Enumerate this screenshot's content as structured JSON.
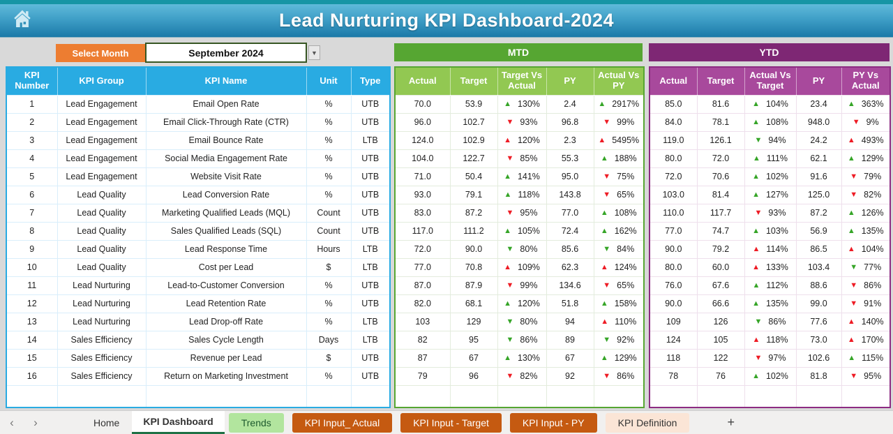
{
  "header": {
    "title": "Lead Nurturing KPI Dashboard-2024"
  },
  "controls": {
    "select_month_label": "Select Month",
    "selected_month": "September 2024"
  },
  "kpi_table": {
    "headers": [
      "KPI Number",
      "KPI Group",
      "KPI Name",
      "Unit",
      "Type"
    ]
  },
  "mtd": {
    "title": "MTD",
    "headers": [
      "Actual",
      "Target",
      "Target Vs Actual",
      "PY",
      "Actual Vs PY"
    ]
  },
  "ytd": {
    "title": "YTD",
    "headers": [
      "Actual",
      "Target",
      "Actual Vs Target",
      "PY",
      "PY Vs Actual"
    ]
  },
  "colors": {
    "accent_table": "#29ABE2",
    "accent_mtd": "#56A632",
    "accent_ytd": "#7E2774",
    "accent_month": "#ED7D31",
    "arrow_green": "#36A528",
    "arrow_red": "#EE1C25"
  },
  "rows": [
    {
      "num": "1",
      "group": "Lead Engagement",
      "name": "Email Open Rate",
      "unit": "%",
      "type": "UTB",
      "mtd": {
        "actual": "70.0",
        "target": "53.9",
        "tva": {
          "arrow": "up",
          "color": "green",
          "value": "130%"
        },
        "py": "2.4",
        "avp": {
          "arrow": "up",
          "color": "green",
          "value": "2917%"
        }
      },
      "ytd": {
        "actual": "85.0",
        "target": "81.6",
        "avt": {
          "arrow": "up",
          "color": "green",
          "value": "104%"
        },
        "py": "23.4",
        "pva": {
          "arrow": "up",
          "color": "green",
          "value": "363%"
        }
      }
    },
    {
      "num": "2",
      "group": "Lead Engagement",
      "name": "Email Click-Through Rate (CTR)",
      "unit": "%",
      "type": "UTB",
      "mtd": {
        "actual": "96.0",
        "target": "102.7",
        "tva": {
          "arrow": "down",
          "color": "red",
          "value": "93%"
        },
        "py": "96.8",
        "avp": {
          "arrow": "down",
          "color": "red",
          "value": "99%"
        }
      },
      "ytd": {
        "actual": "84.0",
        "target": "78.1",
        "avt": {
          "arrow": "up",
          "color": "green",
          "value": "108%"
        },
        "py": "948.0",
        "pva": {
          "arrow": "down",
          "color": "red",
          "value": "9%"
        }
      }
    },
    {
      "num": "3",
      "group": "Lead Engagement",
      "name": "Email Bounce Rate",
      "unit": "%",
      "type": "LTB",
      "mtd": {
        "actual": "124.0",
        "target": "102.9",
        "tva": {
          "arrow": "up",
          "color": "red",
          "value": "120%"
        },
        "py": "2.3",
        "avp": {
          "arrow": "up",
          "color": "red",
          "value": "5495%"
        }
      },
      "ytd": {
        "actual": "119.0",
        "target": "126.1",
        "avt": {
          "arrow": "down",
          "color": "green",
          "value": "94%"
        },
        "py": "24.2",
        "pva": {
          "arrow": "up",
          "color": "red",
          "value": "493%"
        }
      }
    },
    {
      "num": "4",
      "group": "Lead Engagement",
      "name": "Social Media Engagement Rate",
      "unit": "%",
      "type": "UTB",
      "mtd": {
        "actual": "104.0",
        "target": "122.7",
        "tva": {
          "arrow": "down",
          "color": "red",
          "value": "85%"
        },
        "py": "55.3",
        "avp": {
          "arrow": "up",
          "color": "green",
          "value": "188%"
        }
      },
      "ytd": {
        "actual": "80.0",
        "target": "72.0",
        "avt": {
          "arrow": "up",
          "color": "green",
          "value": "111%"
        },
        "py": "62.1",
        "pva": {
          "arrow": "up",
          "color": "green",
          "value": "129%"
        }
      }
    },
    {
      "num": "5",
      "group": "Lead Engagement",
      "name": "Website Visit Rate",
      "unit": "%",
      "type": "UTB",
      "mtd": {
        "actual": "71.0",
        "target": "50.4",
        "tva": {
          "arrow": "up",
          "color": "green",
          "value": "141%"
        },
        "py": "95.0",
        "avp": {
          "arrow": "down",
          "color": "red",
          "value": "75%"
        }
      },
      "ytd": {
        "actual": "72.0",
        "target": "70.6",
        "avt": {
          "arrow": "up",
          "color": "green",
          "value": "102%"
        },
        "py": "91.6",
        "pva": {
          "arrow": "down",
          "color": "red",
          "value": "79%"
        }
      }
    },
    {
      "num": "6",
      "group": "Lead Quality",
      "name": "Lead Conversion Rate",
      "unit": "%",
      "type": "UTB",
      "mtd": {
        "actual": "93.0",
        "target": "79.1",
        "tva": {
          "arrow": "up",
          "color": "green",
          "value": "118%"
        },
        "py": "143.8",
        "avp": {
          "arrow": "down",
          "color": "red",
          "value": "65%"
        }
      },
      "ytd": {
        "actual": "103.0",
        "target": "81.4",
        "avt": {
          "arrow": "up",
          "color": "green",
          "value": "127%"
        },
        "py": "125.0",
        "pva": {
          "arrow": "down",
          "color": "red",
          "value": "82%"
        }
      }
    },
    {
      "num": "7",
      "group": "Lead Quality",
      "name": "Marketing Qualified Leads (MQL)",
      "unit": "Count",
      "type": "UTB",
      "mtd": {
        "actual": "83.0",
        "target": "87.2",
        "tva": {
          "arrow": "down",
          "color": "red",
          "value": "95%"
        },
        "py": "77.0",
        "avp": {
          "arrow": "up",
          "color": "green",
          "value": "108%"
        }
      },
      "ytd": {
        "actual": "110.0",
        "target": "117.7",
        "avt": {
          "arrow": "down",
          "color": "red",
          "value": "93%"
        },
        "py": "87.2",
        "pva": {
          "arrow": "up",
          "color": "green",
          "value": "126%"
        }
      }
    },
    {
      "num": "8",
      "group": "Lead Quality",
      "name": "Sales Qualified Leads (SQL)",
      "unit": "Count",
      "type": "UTB",
      "mtd": {
        "actual": "117.0",
        "target": "111.2",
        "tva": {
          "arrow": "up",
          "color": "green",
          "value": "105%"
        },
        "py": "72.4",
        "avp": {
          "arrow": "up",
          "color": "green",
          "value": "162%"
        }
      },
      "ytd": {
        "actual": "77.0",
        "target": "74.7",
        "avt": {
          "arrow": "up",
          "color": "green",
          "value": "103%"
        },
        "py": "56.9",
        "pva": {
          "arrow": "up",
          "color": "green",
          "value": "135%"
        }
      }
    },
    {
      "num": "9",
      "group": "Lead Quality",
      "name": "Lead Response Time",
      "unit": "Hours",
      "type": "LTB",
      "mtd": {
        "actual": "72.0",
        "target": "90.0",
        "tva": {
          "arrow": "down",
          "color": "green",
          "value": "80%"
        },
        "py": "85.6",
        "avp": {
          "arrow": "down",
          "color": "green",
          "value": "84%"
        }
      },
      "ytd": {
        "actual": "90.0",
        "target": "79.2",
        "avt": {
          "arrow": "up",
          "color": "red",
          "value": "114%"
        },
        "py": "86.5",
        "pva": {
          "arrow": "up",
          "color": "red",
          "value": "104%"
        }
      }
    },
    {
      "num": "10",
      "group": "Lead Quality",
      "name": "Cost per Lead",
      "unit": "$",
      "type": "LTB",
      "mtd": {
        "actual": "77.0",
        "target": "70.8",
        "tva": {
          "arrow": "up",
          "color": "red",
          "value": "109%"
        },
        "py": "62.3",
        "avp": {
          "arrow": "up",
          "color": "red",
          "value": "124%"
        }
      },
      "ytd": {
        "actual": "80.0",
        "target": "60.0",
        "avt": {
          "arrow": "up",
          "color": "red",
          "value": "133%"
        },
        "py": "103.4",
        "pva": {
          "arrow": "down",
          "color": "green",
          "value": "77%"
        }
      }
    },
    {
      "num": "11",
      "group": "Lead Nurturing",
      "name": "Lead-to-Customer Conversion",
      "unit": "%",
      "type": "UTB",
      "mtd": {
        "actual": "87.0",
        "target": "87.9",
        "tva": {
          "arrow": "down",
          "color": "red",
          "value": "99%"
        },
        "py": "134.6",
        "avp": {
          "arrow": "down",
          "color": "red",
          "value": "65%"
        }
      },
      "ytd": {
        "actual": "76.0",
        "target": "67.6",
        "avt": {
          "arrow": "up",
          "color": "green",
          "value": "112%"
        },
        "py": "88.6",
        "pva": {
          "arrow": "down",
          "color": "red",
          "value": "86%"
        }
      }
    },
    {
      "num": "12",
      "group": "Lead Nurturing",
      "name": "Lead Retention Rate",
      "unit": "%",
      "type": "UTB",
      "mtd": {
        "actual": "82.0",
        "target": "68.1",
        "tva": {
          "arrow": "up",
          "color": "green",
          "value": "120%"
        },
        "py": "51.8",
        "avp": {
          "arrow": "up",
          "color": "green",
          "value": "158%"
        }
      },
      "ytd": {
        "actual": "90.0",
        "target": "66.6",
        "avt": {
          "arrow": "up",
          "color": "green",
          "value": "135%"
        },
        "py": "99.0",
        "pva": {
          "arrow": "down",
          "color": "red",
          "value": "91%"
        }
      }
    },
    {
      "num": "13",
      "group": "Lead Nurturing",
      "name": "Lead Drop-off Rate",
      "unit": "%",
      "type": "LTB",
      "mtd": {
        "actual": "103",
        "target": "129",
        "tva": {
          "arrow": "down",
          "color": "green",
          "value": "80%"
        },
        "py": "94",
        "avp": {
          "arrow": "up",
          "color": "red",
          "value": "110%"
        }
      },
      "ytd": {
        "actual": "109",
        "target": "126",
        "avt": {
          "arrow": "down",
          "color": "green",
          "value": "86%"
        },
        "py": "77.6",
        "pva": {
          "arrow": "up",
          "color": "red",
          "value": "140%"
        }
      }
    },
    {
      "num": "14",
      "group": "Sales Efficiency",
      "name": "Sales Cycle Length",
      "unit": "Days",
      "type": "LTB",
      "mtd": {
        "actual": "82",
        "target": "95",
        "tva": {
          "arrow": "down",
          "color": "green",
          "value": "86%"
        },
        "py": "89",
        "avp": {
          "arrow": "down",
          "color": "green",
          "value": "92%"
        }
      },
      "ytd": {
        "actual": "124",
        "target": "105",
        "avt": {
          "arrow": "up",
          "color": "red",
          "value": "118%"
        },
        "py": "73.0",
        "pva": {
          "arrow": "up",
          "color": "red",
          "value": "170%"
        }
      }
    },
    {
      "num": "15",
      "group": "Sales Efficiency",
      "name": "Revenue per Lead",
      "unit": "$",
      "type": "UTB",
      "mtd": {
        "actual": "87",
        "target": "67",
        "tva": {
          "arrow": "up",
          "color": "green",
          "value": "130%"
        },
        "py": "67",
        "avp": {
          "arrow": "up",
          "color": "green",
          "value": "129%"
        }
      },
      "ytd": {
        "actual": "118",
        "target": "122",
        "avt": {
          "arrow": "down",
          "color": "red",
          "value": "97%"
        },
        "py": "102.6",
        "pva": {
          "arrow": "up",
          "color": "green",
          "value": "115%"
        }
      }
    },
    {
      "num": "16",
      "group": "Sales Efficiency",
      "name": "Return on Marketing Investment",
      "unit": "%",
      "type": "UTB",
      "mtd": {
        "actual": "79",
        "target": "96",
        "tva": {
          "arrow": "down",
          "color": "red",
          "value": "82%"
        },
        "py": "92",
        "avp": {
          "arrow": "down",
          "color": "red",
          "value": "86%"
        }
      },
      "ytd": {
        "actual": "78",
        "target": "76",
        "avt": {
          "arrow": "up",
          "color": "green",
          "value": "102%"
        },
        "py": "81.8",
        "pva": {
          "arrow": "down",
          "color": "red",
          "value": "95%"
        }
      }
    }
  ],
  "tabs": [
    {
      "label": "Home",
      "style": "plain"
    },
    {
      "label": "KPI Dashboard",
      "style": "active"
    },
    {
      "label": "Trends",
      "style": "green"
    },
    {
      "label": "KPI Input_ Actual",
      "style": "orange"
    },
    {
      "label": "KPI Input - Target",
      "style": "orange"
    },
    {
      "label": "KPI Input - PY",
      "style": "orange"
    },
    {
      "label": "KPI Definition",
      "style": "peach"
    }
  ],
  "tab_bar": {
    "prev_label": "‹",
    "next_label": "›",
    "add_tab_label": "+"
  }
}
